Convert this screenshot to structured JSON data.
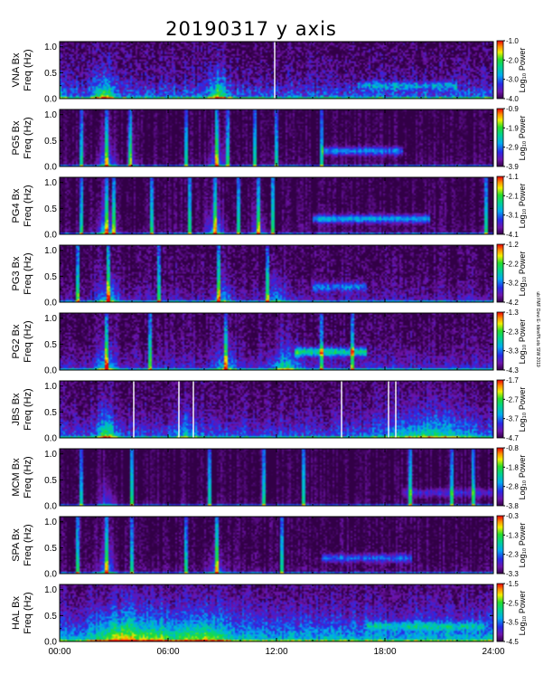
{
  "chart_data": {
    "type": "heatmap",
    "title": "20190317  y axis",
    "side_note": "ub FMF Dew E- tdev/PLots SIW 2019",
    "xticks": [
      "00:00",
      "06:00",
      "12:00",
      "18:00",
      "24:00"
    ],
    "xlim_hours": [
      0,
      24
    ],
    "colorbar_label": "Log₁₀ Power",
    "colormap": "rainbow (purple-blue-cyan-green-yellow-red)",
    "panels": [
      {
        "station": "VNA",
        "component": "Bx",
        "ylabel_top": "VNA  Bx",
        "ylabel_bottom": "Freq (Hz)",
        "yticks": [
          "0.0",
          "0.5",
          "1.0"
        ],
        "ylim": [
          0,
          1.1
        ],
        "cb_ticks": [
          "-1.0",
          "-2.0",
          "-3.0",
          "-4.0"
        ],
        "cb_range": [
          -4.0,
          -1.0
        ],
        "base": 0.35,
        "noise": 0.28,
        "decay": 3.0,
        "events": [
          [
            2.5,
            0.45,
            0.55
          ],
          [
            8.8,
            0.5,
            0.5
          ],
          [
            0.0,
            0.3,
            0.25
          ]
        ],
        "spikes": [],
        "gaps": [
          11.9
        ],
        "pc1": [
          [
            16.5,
            22.0,
            0.25,
            0.25
          ]
        ]
      },
      {
        "station": "PG5",
        "component": "Bx",
        "ylabel_top": "PG5  Bx",
        "ylabel_bottom": "Freq (Hz)",
        "yticks": [
          "0.0",
          "0.5",
          "1.0"
        ],
        "ylim": [
          0,
          1.1
        ],
        "cb_ticks": [
          "-0.9",
          "-1.9",
          "-2.9",
          "-3.9"
        ],
        "cb_range": [
          -3.9,
          -0.9
        ],
        "base": 0.06,
        "noise": 0.12,
        "decay": 6.0,
        "events": [
          [
            2.6,
            0.4,
            0.5
          ],
          [
            8.7,
            0.35,
            0.45
          ],
          [
            4.0,
            0.2,
            0.3
          ]
        ],
        "spikes": [
          1.2,
          2.6,
          3.9,
          7.0,
          8.7,
          9.3,
          10.8,
          12.0,
          14.5
        ],
        "gaps": [],
        "pc1": [
          [
            14.5,
            19.0,
            0.3,
            0.35
          ]
        ]
      },
      {
        "station": "PG4",
        "component": "Bx",
        "ylabel_top": "PG4  Bx",
        "ylabel_bottom": "Freq (Hz)",
        "yticks": [
          "0.0",
          "0.5",
          "1.0"
        ],
        "ylim": [
          0,
          1.1
        ],
        "cb_ticks": [
          "-1.1",
          "-2.1",
          "-3.1",
          "-4.1"
        ],
        "cb_range": [
          -4.1,
          -1.1
        ],
        "base": 0.07,
        "noise": 0.13,
        "decay": 6.0,
        "events": [
          [
            2.6,
            0.45,
            0.5
          ],
          [
            8.6,
            0.4,
            0.5
          ],
          [
            11.0,
            0.3,
            0.4
          ]
        ],
        "spikes": [
          1.2,
          2.6,
          3.0,
          5.1,
          7.2,
          8.6,
          9.9,
          11.0,
          11.8,
          23.6
        ],
        "gaps": [],
        "pc1": [
          [
            14.0,
            20.5,
            0.3,
            0.4
          ]
        ]
      },
      {
        "station": "PG3",
        "component": "Bx",
        "ylabel_top": "PG3  Bx",
        "ylabel_bottom": "Freq (Hz)",
        "yticks": [
          "0.0",
          "0.5",
          "1.0"
        ],
        "ylim": [
          0,
          1.1
        ],
        "cb_ticks": [
          "-1.2",
          "-2.2",
          "-3.2",
          "-4.2"
        ],
        "cb_range": [
          -4.2,
          -1.2
        ],
        "base": 0.18,
        "noise": 0.2,
        "decay": 3.5,
        "events": [
          [
            2.7,
            0.4,
            0.5
          ],
          [
            9.0,
            0.35,
            0.5
          ],
          [
            12.0,
            0.3,
            0.6
          ]
        ],
        "spikes": [
          1.0,
          2.7,
          5.5,
          8.8,
          11.5
        ],
        "gaps": [],
        "pc1": [
          [
            14.0,
            17.0,
            0.3,
            0.3
          ]
        ]
      },
      {
        "station": "PG2",
        "component": "Bx",
        "ylabel_top": "PG2  Bx",
        "ylabel_bottom": "Freq (Hz)",
        "yticks": [
          "0.0",
          "0.5",
          "1.0"
        ],
        "ylim": [
          0,
          1.1
        ],
        "cb_ticks": [
          "-1.3",
          "-2.3",
          "-3.3",
          "-4.3"
        ],
        "cb_range": [
          -4.3,
          -1.3
        ],
        "base": 0.22,
        "noise": 0.2,
        "decay": 3.0,
        "events": [
          [
            2.6,
            0.4,
            0.5
          ],
          [
            9.2,
            0.35,
            0.5
          ],
          [
            12.5,
            0.4,
            0.8
          ]
        ],
        "spikes": [
          2.6,
          5.0,
          9.2,
          14.5,
          16.2
        ],
        "gaps": [],
        "pc1": [
          [
            13.0,
            17.0,
            0.35,
            0.5
          ]
        ]
      },
      {
        "station": "JBS",
        "component": "Bx",
        "ylabel_top": "JBS  Bx",
        "ylabel_bottom": "Freq (Hz)",
        "yticks": [
          "0.0",
          "0.5",
          "1.0"
        ],
        "ylim": [
          0,
          1.1
        ],
        "cb_ticks": [
          "-1.7",
          "-2.7",
          "-3.7",
          "-4.7"
        ],
        "cb_range": [
          -4.7,
          -1.7
        ],
        "base": 0.3,
        "noise": 0.22,
        "decay": 2.5,
        "events": [
          [
            2.6,
            0.5,
            0.5
          ],
          [
            20.5,
            0.35,
            2.5
          ],
          [
            7.0,
            0.25,
            0.6
          ]
        ],
        "spikes": [],
        "gaps": [
          4.1,
          6.6,
          7.4,
          15.6,
          18.2,
          18.6
        ],
        "pc1": []
      },
      {
        "station": "MCM",
        "component": "Bx",
        "ylabel_top": "MCM  Bx",
        "ylabel_bottom": "Freq (Hz)",
        "yticks": [
          "0.0",
          "0.5",
          "1.0"
        ],
        "ylim": [
          0,
          1.1
        ],
        "cb_ticks": [
          "-0.8",
          "-1.8",
          "-2.8",
          "-3.8"
        ],
        "cb_range": [
          -3.8,
          -0.8
        ],
        "base": 0.04,
        "noise": 0.1,
        "decay": 5.0,
        "events": [
          [
            2.6,
            0.3,
            0.4
          ]
        ],
        "spikes": [
          1.2,
          4.0,
          8.3,
          11.3,
          13.5,
          19.4,
          21.7,
          22.9
        ],
        "gaps": [],
        "pc1": [
          [
            19.0,
            24.0,
            0.25,
            0.2
          ]
        ]
      },
      {
        "station": "SPA",
        "component": "Bx",
        "ylabel_top": "SPA  Bx",
        "ylabel_bottom": "Freq (Hz)",
        "yticks": [
          "0.0",
          "0.5",
          "1.0"
        ],
        "ylim": [
          0,
          1.1
        ],
        "cb_ticks": [
          "-0.3",
          "-1.3",
          "-2.3",
          "-3.3"
        ],
        "cb_range": [
          -3.3,
          -0.3
        ],
        "base": 0.08,
        "noise": 0.14,
        "decay": 5.0,
        "events": [
          [
            2.6,
            0.35,
            0.5
          ],
          [
            8.7,
            0.3,
            0.5
          ]
        ],
        "spikes": [
          1.0,
          2.6,
          4.0,
          7.0,
          8.7,
          12.3
        ],
        "gaps": [],
        "pc1": [
          [
            14.5,
            19.5,
            0.3,
            0.3
          ]
        ]
      },
      {
        "station": "HAL",
        "component": "Bx",
        "ylabel_top": "HAL  Bx",
        "ylabel_bottom": "Freq (Hz)",
        "yticks": [
          "0.0",
          "0.5",
          "1.0"
        ],
        "ylim": [
          0,
          1.1
        ],
        "cb_ticks": [
          "-1.5",
          "-2.5",
          "-3.5",
          "-4.5"
        ],
        "cb_range": [
          -4.5,
          -1.5
        ],
        "base": 0.5,
        "noise": 0.22,
        "decay": 2.0,
        "events": [
          [
            3.5,
            0.45,
            1.4
          ],
          [
            7.8,
            0.35,
            1.4
          ],
          [
            5.5,
            0.25,
            0.8
          ]
        ],
        "spikes": [],
        "gaps": [],
        "pc1": [
          [
            17.0,
            23.5,
            0.3,
            0.25
          ]
        ]
      }
    ]
  }
}
